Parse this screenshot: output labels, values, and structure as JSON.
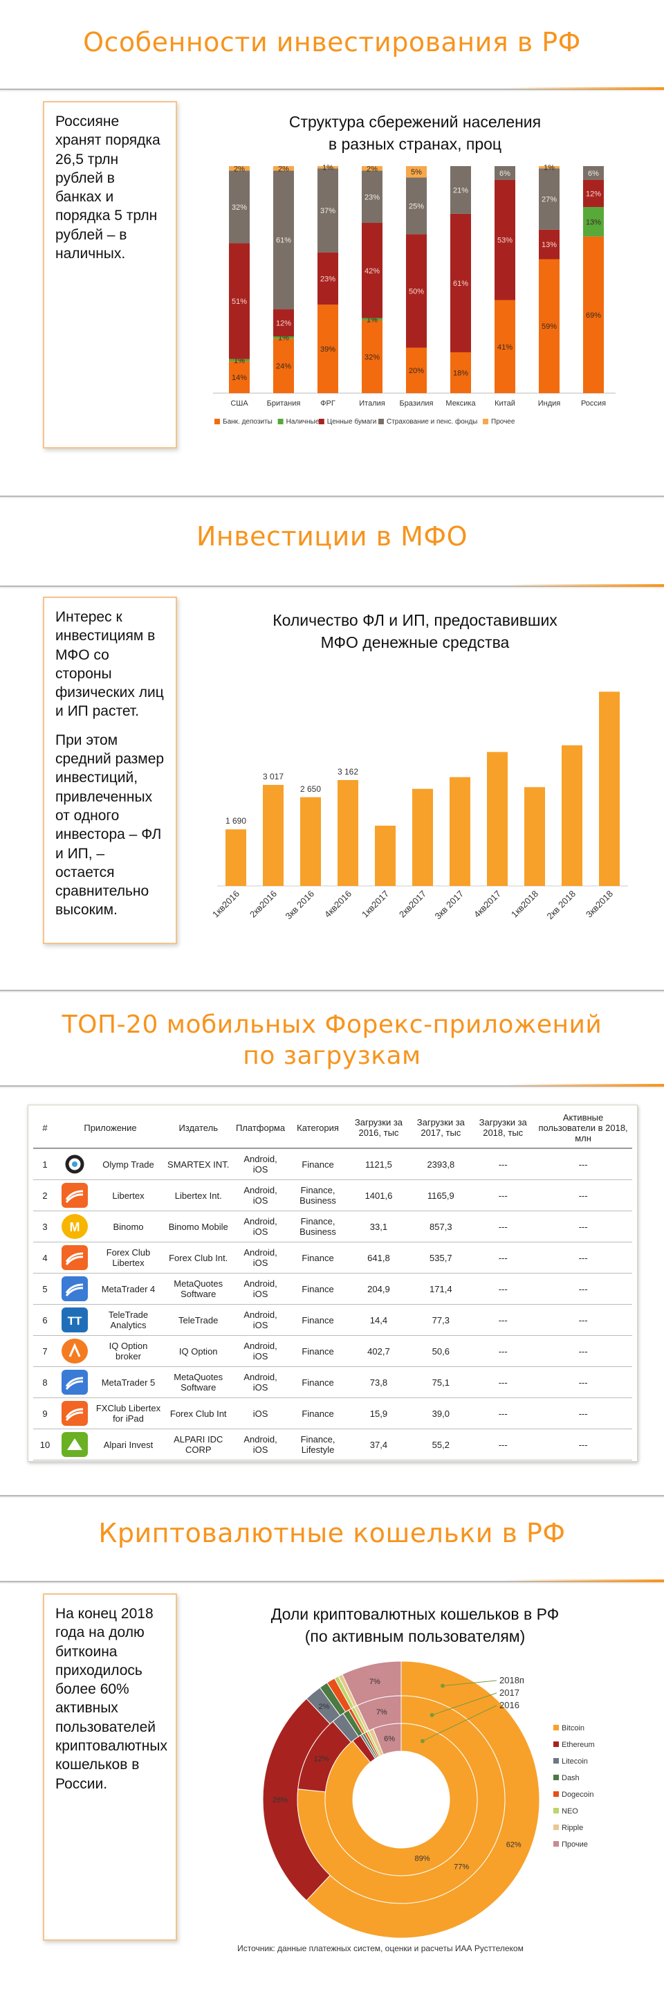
{
  "section1": {
    "title": "Особенности инвестирования в РФ",
    "note": "Россияне хранят порядка 26,5 трлн рублей в банках и порядка 5 трлн рублей – в наличных.",
    "chart_title_line1": "Структура сбережений населения",
    "chart_title_line2": "в разных странах, проц"
  },
  "section2": {
    "title": "Инвестиции в МФО",
    "note_p1": "Интерес к инвестициям в МФО со стороны физических лиц и ИП растет.",
    "note_p2": "При этом средний размер инвестиций, привлеченных от одного инвестора – ФЛ и ИП, – остается сравнительно высоким.",
    "chart_title_line1": "Количество ФЛ и ИП, предоставивших",
    "chart_title_line2": "МФО денежные средства"
  },
  "section3": {
    "title_line1": "ТОП-20 мобильных Форекс-приложений",
    "title_line2": "по загрузкам",
    "headers": [
      "#",
      "Приложение",
      "Издатель",
      "Платформа",
      "Категория",
      "Загрузки за 2016, тыс",
      "Загрузки за 2017, тыс",
      "Загрузки за 2018, тыс",
      "Активные пользователи в 2018, млн"
    ],
    "rows": [
      {
        "n": "1",
        "app": "Olymp Trade",
        "publisher": "SMARTEX INT.",
        "platform": "Android, iOS",
        "category": "Finance",
        "d2016": "1121,5",
        "d2017": "2393,8",
        "d2018": "---",
        "active": "---",
        "icon": "olymp-trade-icon",
        "color": "#ffffff"
      },
      {
        "n": "2",
        "app": "Libertex",
        "publisher": "Libertex Int.",
        "platform": "Android, iOS",
        "category": "Finance, Business",
        "d2016": "1401,6",
        "d2017": "1165,9",
        "d2018": "---",
        "active": "---",
        "icon": "libertex-icon",
        "color": "#f26522"
      },
      {
        "n": "3",
        "app": "Binomo",
        "publisher": "Binomo Mobile",
        "platform": "Android, iOS",
        "category": "Finance, Business",
        "d2016": "33,1",
        "d2017": "857,3",
        "d2018": "---",
        "active": "---",
        "icon": "binomo-icon",
        "color": "#f7b500"
      },
      {
        "n": "4",
        "app": "Forex Club Libertex",
        "publisher": "Forex Club Int.",
        "platform": "Android, iOS",
        "category": "Finance",
        "d2016": "641,8",
        "d2017": "535,7",
        "d2018": "---",
        "active": "---",
        "icon": "forex-club-icon",
        "color": "#f26522"
      },
      {
        "n": "5",
        "app": "MetaTrader 4",
        "publisher": "MetaQuotes Software",
        "platform": "Android, iOS",
        "category": "Finance",
        "d2016": "204,9",
        "d2017": "171,4",
        "d2018": "---",
        "active": "---",
        "icon": "metatrader4-icon",
        "color": "#3a7bd5"
      },
      {
        "n": "6",
        "app": "TeleTrade Analytics",
        "publisher": "TeleTrade",
        "platform": "Android, iOS",
        "category": "Finance",
        "d2016": "14,4",
        "d2017": "77,3",
        "d2018": "---",
        "active": "---",
        "icon": "teletrade-icon",
        "color": "#1f6fb8"
      },
      {
        "n": "7",
        "app": "IQ Option broker",
        "publisher": "IQ Option",
        "platform": "Android, iOS",
        "category": "Finance",
        "d2016": "402,7",
        "d2017": "50,6",
        "d2018": "---",
        "active": "---",
        "icon": "iq-option-icon",
        "color": "#f47b20"
      },
      {
        "n": "8",
        "app": "MetaTrader 5",
        "publisher": "MetaQuotes Software",
        "platform": "Android, iOS",
        "category": "Finance",
        "d2016": "73,8",
        "d2017": "75,1",
        "d2018": "---",
        "active": "---",
        "icon": "metatrader5-icon",
        "color": "#3a7bd5"
      },
      {
        "n": "9",
        "app": "FXClub Libertex for iPad",
        "publisher": "Forex Club Int",
        "platform": "iOS",
        "category": "Finance",
        "d2016": "15,9",
        "d2017": "39,0",
        "d2018": "---",
        "active": "---",
        "icon": "fxclub-ipad-icon",
        "color": "#f26522"
      },
      {
        "n": "10",
        "app": "Alpari Invest",
        "publisher": "ALPARI IDC CORP",
        "platform": "Android, iOS",
        "category": "Finance, Lifestyle",
        "d2016": "37,4",
        "d2017": "55,2",
        "d2018": "---",
        "active": "---",
        "icon": "alpari-icon",
        "color": "#6ab023"
      }
    ]
  },
  "section4": {
    "title": "Криптовалютные кошельки в РФ",
    "note": "На конец 2018 года на долю биткоина приходилось более 60% активных пользователей криптовалютных кошельков в России.",
    "chart_title_line1": "Доли криптовалютных кошельков в РФ",
    "chart_title_line2": "(по активным пользователям)",
    "source": "Источник: данные платежных систем, оценки и расчеты ИАА Русттелеком"
  },
  "chart_data": [
    {
      "type": "bar",
      "stacked": true,
      "title": "Структура сбережений населения в разных странах, проц",
      "categories": [
        "США",
        "Британия",
        "ФРГ",
        "Италия",
        "Бразилия",
        "Мексика",
        "Китай",
        "Индия",
        "Россия"
      ],
      "series": [
        {
          "name": "Банк. депозиты",
          "color": "#f26b0f",
          "values": [
            14,
            24,
            39,
            32,
            20,
            18,
            41,
            59,
            69
          ]
        },
        {
          "name": "Наличные",
          "color": "#58a83a",
          "values": [
            1,
            1,
            0,
            1,
            0,
            0,
            0,
            0,
            13
          ]
        },
        {
          "name": "Ценные бумаги",
          "color": "#a8231f",
          "values": [
            51,
            12,
            23,
            42,
            50,
            61,
            53,
            13,
            12
          ]
        },
        {
          "name": "Страхование и пенс. фонды",
          "color": "#7a7067",
          "values": [
            32,
            61,
            37,
            23,
            25,
            21,
            6,
            27,
            6
          ]
        },
        {
          "name": "Прочее",
          "color": "#f7a84a",
          "values": [
            2,
            2,
            1,
            2,
            5,
            0,
            0,
            1,
            0
          ]
        }
      ],
      "labels": [
        [
          "14%",
          "1%",
          "51%",
          "32%",
          "2%"
        ],
        [
          "24%",
          "1%",
          "12%",
          "61%",
          "2%"
        ],
        [
          "39%",
          "",
          "23%",
          "37%",
          "1%"
        ],
        [
          "32%",
          "1%",
          "42%",
          "23%",
          "2%"
        ],
        [
          "20%",
          "",
          "50%",
          "25%",
          "5%"
        ],
        [
          "18%",
          "",
          "61%",
          "21%",
          ""
        ],
        [
          "41%",
          "",
          "53%",
          "6%",
          ""
        ],
        [
          "59%",
          "",
          "13%",
          "27%",
          "1%"
        ],
        [
          "69%",
          "13%",
          "12%",
          "6%",
          ""
        ]
      ],
      "ylim": [
        0,
        100
      ],
      "legend_position": "bottom"
    },
    {
      "type": "bar",
      "title": "Количество ФЛ и ИП, предоставивших МФО денежные средства",
      "categories": [
        "1кв2016",
        "2кв2016",
        "3кв 2016",
        "4кв2016",
        "1кв2017",
        "2кв2017",
        "3кв 2017",
        "4кв2017",
        "1кв2018",
        "2кв 2018",
        "3кв2018"
      ],
      "values": [
        1690,
        3017,
        2650,
        3162,
        1800,
        2900,
        3250,
        4000,
        2950,
        4200,
        5800
      ],
      "data_labels": [
        "1 690",
        "3 017",
        "2 650",
        "3 162",
        "",
        "",
        "",
        "",
        "",
        "",
        ""
      ],
      "color": "#f7a12a",
      "ylim": [
        0,
        6200
      ]
    },
    {
      "type": "pie",
      "subtype": "nested-donut",
      "title": "Доли криптовалютных кошельков в РФ (по активным пользователям)",
      "rings": [
        "2018п",
        "2017",
        "2016"
      ],
      "categories": [
        "Bitcoin",
        "Ethereum",
        "Litecoin",
        "Dash",
        "Dogecoin",
        "NEO",
        "Ripple",
        "Прочие"
      ],
      "colors": [
        "#f7a12a",
        "#a8231f",
        "#6e7782",
        "#4b7a43",
        "#e8501a",
        "#b8d66b",
        "#e8c890",
        "#c98a90"
      ],
      "series": [
        {
          "name": "2018п",
          "values": [
            62,
            26,
            2,
            1,
            1,
            0.5,
            0.5,
            7
          ],
          "labels": [
            "62%",
            "26%",
            "2%",
            "",
            "",
            "",
            "",
            "7%"
          ]
        },
        {
          "name": "2017",
          "values": [
            77,
            12,
            2,
            1,
            0.5,
            0.5,
            0.5,
            7
          ],
          "labels": [
            "77%",
            "12%",
            "",
            "",
            "",
            "",
            "",
            "7%"
          ]
        },
        {
          "name": "2016",
          "values": [
            89,
            2,
            0.5,
            0.5,
            0.5,
            0.5,
            1,
            6
          ],
          "labels": [
            "89%",
            "",
            "",
            "",
            "",
            "",
            "",
            "6%"
          ]
        }
      ]
    }
  ]
}
